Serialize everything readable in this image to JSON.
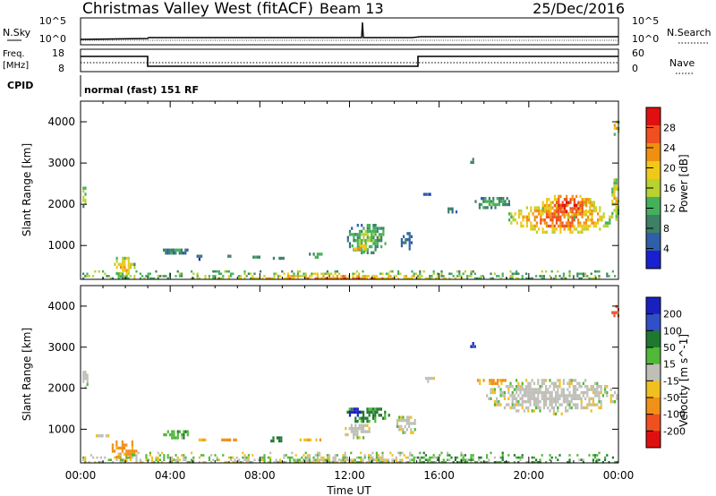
{
  "header": {
    "station": "Christmas Valley West (fitACF)",
    "beam": "Beam 13",
    "date": "25/Dec/2016"
  },
  "noise_panel": {
    "left_label": "N.Sky",
    "right_label": "N.Search",
    "left_ticks": [
      "10^5",
      "10^0"
    ],
    "right_ticks": [
      "10^5",
      "10^0"
    ]
  },
  "freq_panel": {
    "left_label_1": "Freq.",
    "left_label_2": "[MHz]",
    "right_label": "Nave",
    "left_ticks": [
      "18",
      "8"
    ],
    "right_ticks": [
      "60",
      "0"
    ]
  },
  "cpid_panel": {
    "label": "CPID",
    "text": "normal (fast) 151 RF"
  },
  "colors": {
    "power_scale": [
      "#1a20d0",
      "#2f5fa8",
      "#3d8066",
      "#44b05a",
      "#b8d230",
      "#f0c818",
      "#f09010",
      "#f05020",
      "#e01010"
    ],
    "velocity_scale": [
      "#1a20c0",
      "#3050c8",
      "#207830",
      "#50b838",
      "#bfbfb8",
      "#f0c020",
      "#f09018",
      "#f05020",
      "#e01010"
    ]
  },
  "chart_data": [
    {
      "type": "heatmap",
      "name": "power",
      "xlabel": "",
      "ylabel": "Slant Range [km]",
      "xlim": [
        "00:00",
        "24:00"
      ],
      "ylim": [
        180,
        4500
      ],
      "yticks": [
        "1000",
        "2000",
        "3000",
        "4000"
      ],
      "colorbar_label": "Power [dB]",
      "colorbar_ticks": [
        "4",
        "8",
        "12",
        "16",
        "20",
        "24",
        "28"
      ],
      "colorbar_range": [
        0,
        32
      ],
      "blobs": [
        {
          "t0": 0.0,
          "t1": 0.25,
          "r0": 1900,
          "r1": 2500,
          "v": 16
        },
        {
          "t0": 1.1,
          "t1": 1.3,
          "r0": 1300,
          "r1": 1450,
          "v": 10
        },
        {
          "t0": 1.4,
          "t1": 2.4,
          "r0": 250,
          "r1": 800,
          "v": 22
        },
        {
          "t0": 3.5,
          "t1": 4.8,
          "r0": 800,
          "r1": 1000,
          "v": 10
        },
        {
          "t0": 5.0,
          "t1": 5.5,
          "r0": 700,
          "r1": 850,
          "v": 8
        },
        {
          "t0": 6.2,
          "t1": 6.8,
          "r0": 700,
          "r1": 850,
          "v": 12
        },
        {
          "t0": 7.5,
          "t1": 8.1,
          "r0": 680,
          "r1": 830,
          "v": 9
        },
        {
          "t0": 8.4,
          "t1": 9.2,
          "r0": 700,
          "r1": 800,
          "v": 10
        },
        {
          "t0": 10.1,
          "t1": 10.8,
          "r0": 700,
          "r1": 900,
          "v": 12
        },
        {
          "t0": 11.8,
          "t1": 13.7,
          "r0": 800,
          "r1": 1600,
          "v": 14
        },
        {
          "t0": 12.0,
          "t1": 12.8,
          "r0": 850,
          "r1": 1100,
          "v": 22
        },
        {
          "t0": 14.2,
          "t1": 14.8,
          "r0": 900,
          "r1": 1400,
          "v": 8
        },
        {
          "t0": 15.2,
          "t1": 15.6,
          "r0": 2200,
          "r1": 2350,
          "v": 6
        },
        {
          "t0": 16.2,
          "t1": 16.8,
          "r0": 1800,
          "r1": 2000,
          "v": 8
        },
        {
          "t0": 17.5,
          "t1": 19.2,
          "r0": 1900,
          "r1": 2250,
          "v": 12
        },
        {
          "t0": 19.0,
          "t1": 23.8,
          "r0": 1300,
          "r1": 2100,
          "v": 26
        },
        {
          "t0": 20.5,
          "t1": 23.0,
          "r0": 1700,
          "r1": 2300,
          "v": 29
        },
        {
          "t0": 23.6,
          "t1": 24.0,
          "r0": 1600,
          "r1": 2700,
          "v": 20
        },
        {
          "t0": 23.7,
          "t1": 24.0,
          "r0": 3700,
          "r1": 4100,
          "v": 22
        },
        {
          "t0": 17.3,
          "t1": 17.6,
          "r0": 3000,
          "r1": 3200,
          "v": 8
        }
      ],
      "ground": {
        "r0": 200,
        "r1": 400,
        "v_mid": 12,
        "v_hot": 24
      }
    },
    {
      "type": "heatmap",
      "name": "velocity",
      "xlabel": "Time UT",
      "ylabel": "Slant Range [km]",
      "xlim": [
        "00:00",
        "24:00"
      ],
      "ylim": [
        180,
        4500
      ],
      "xticks": [
        "00:00",
        "04:00",
        "08:00",
        "12:00",
        "16:00",
        "20:00",
        "00:00"
      ],
      "yticks": [
        "1000",
        "2000",
        "3000",
        "4000"
      ],
      "colorbar_label": "Velocity [m s^-1]",
      "colorbar_ticks": [
        "200",
        "100",
        "50",
        "15",
        "-15",
        "-50",
        "-100",
        "-200"
      ],
      "blobs": [
        {
          "t0": 0.0,
          "t1": 0.3,
          "r0": 1900,
          "r1": 2500,
          "v": 0
        },
        {
          "t0": 1.3,
          "t1": 2.6,
          "r0": 250,
          "r1": 800,
          "v": -60
        },
        {
          "t0": 0.5,
          "t1": 1.4,
          "r0": 850,
          "r1": 950,
          "v": 0
        },
        {
          "t0": 3.6,
          "t1": 4.8,
          "r0": 800,
          "r1": 1050,
          "v": 40
        },
        {
          "t0": 5.0,
          "t1": 5.6,
          "r0": 700,
          "r1": 850,
          "v": -40
        },
        {
          "t0": 6.1,
          "t1": 7.0,
          "r0": 700,
          "r1": 850,
          "v": -60
        },
        {
          "t0": 8.3,
          "t1": 9.3,
          "r0": 700,
          "r1": 900,
          "v": 60
        },
        {
          "t0": 9.6,
          "t1": 10.8,
          "r0": 700,
          "r1": 850,
          "v": -50
        },
        {
          "t0": 11.7,
          "t1": 13.8,
          "r0": 1200,
          "r1": 1600,
          "v": 60
        },
        {
          "t0": 11.8,
          "t1": 12.6,
          "r0": 1350,
          "r1": 1600,
          "v": 180
        },
        {
          "t0": 11.7,
          "t1": 13.0,
          "r0": 800,
          "r1": 1200,
          "v": 0
        },
        {
          "t0": 14.0,
          "t1": 15.0,
          "r0": 900,
          "r1": 1400,
          "v": 0
        },
        {
          "t0": 15.2,
          "t1": 15.8,
          "r0": 2200,
          "r1": 2350,
          "v": 0
        },
        {
          "t0": 17.6,
          "t1": 19.0,
          "r0": 2100,
          "r1": 2300,
          "v": -60
        },
        {
          "t0": 18.0,
          "t1": 24.0,
          "r0": 1400,
          "r1": 2300,
          "v": 0
        },
        {
          "t0": 23.6,
          "t1": 24.0,
          "r0": 3700,
          "r1": 4100,
          "v": -150
        },
        {
          "t0": 17.3,
          "t1": 17.6,
          "r0": 3000,
          "r1": 3200,
          "v": 150
        }
      ],
      "ground": {
        "r0": 200,
        "r1": 450,
        "v_lo": -30,
        "v_hi": 40
      }
    }
  ]
}
